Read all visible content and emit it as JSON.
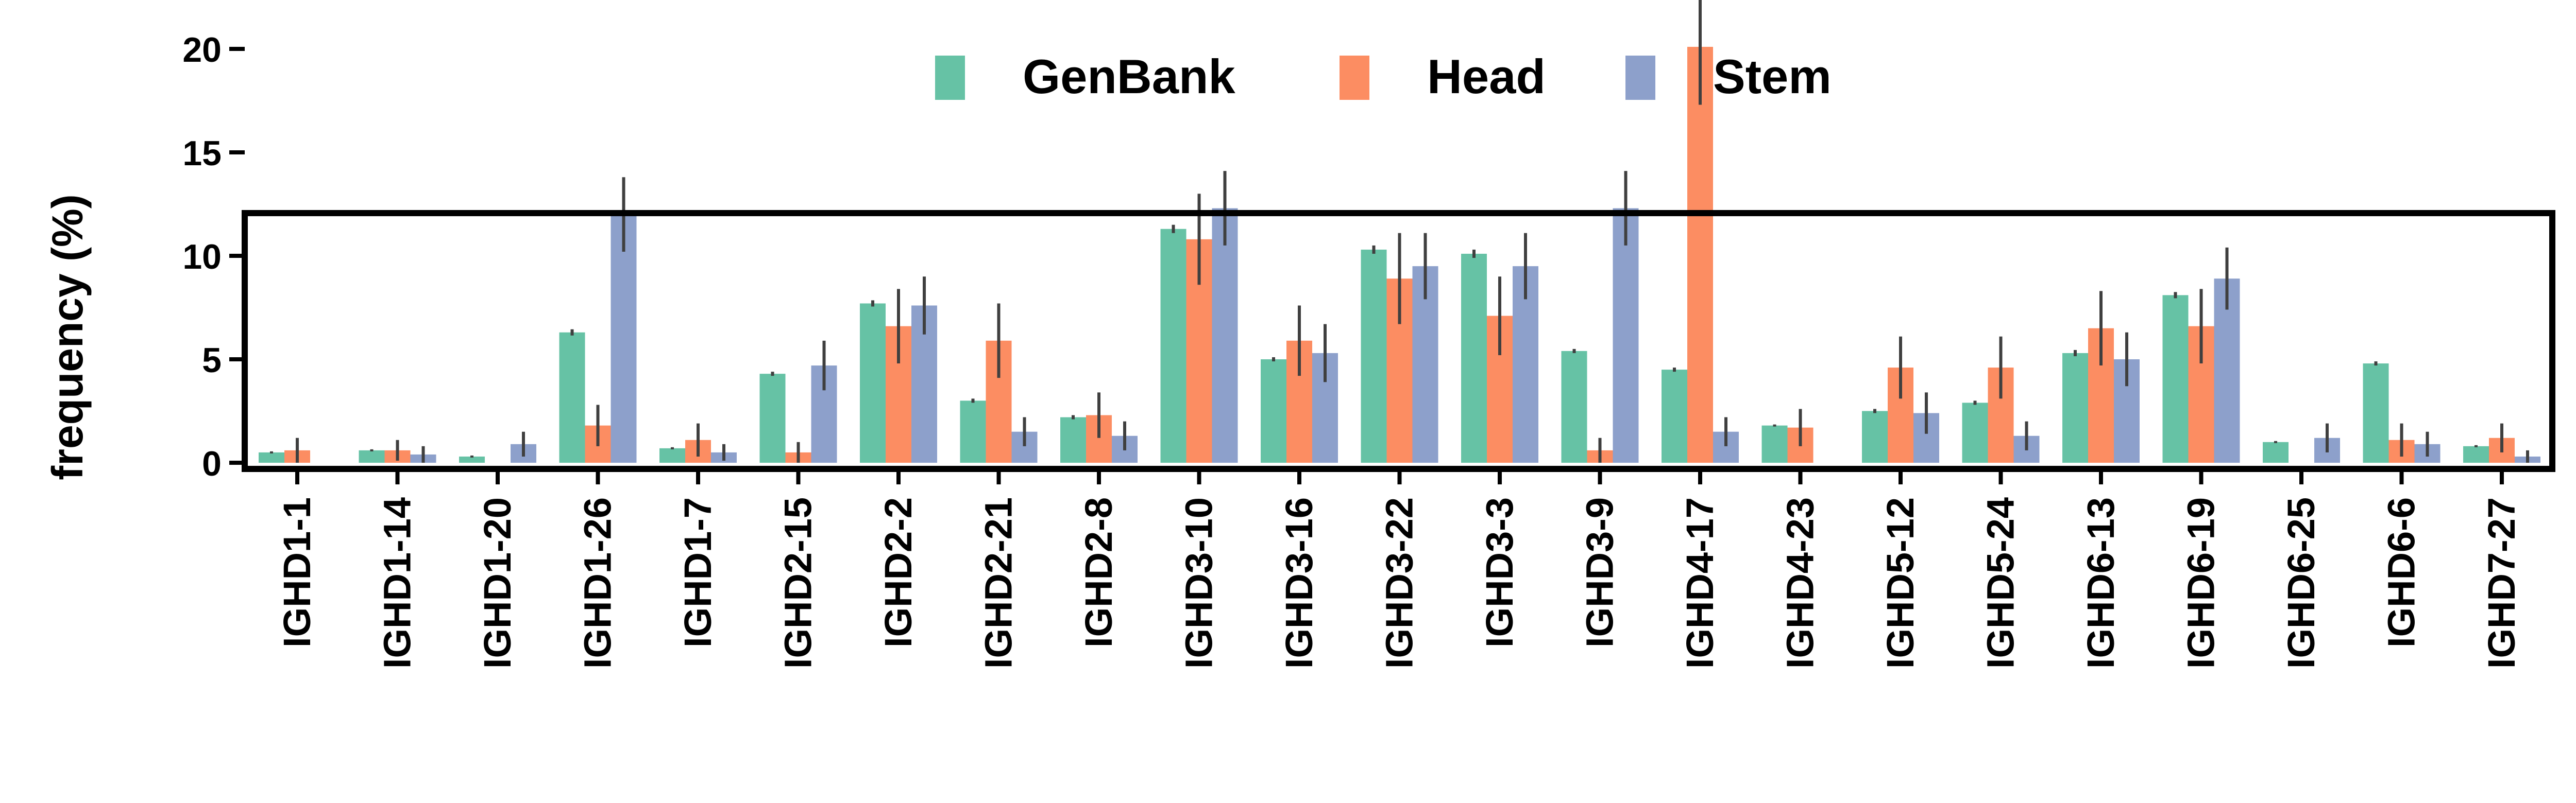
{
  "chart_data": {
    "type": "bar",
    "ylabel": "frequency (%)",
    "xlabel": "",
    "ylim": [
      0,
      23.5
    ],
    "yticks": [
      0,
      5,
      10,
      15,
      20
    ],
    "grid": false,
    "legend_position": "top-center",
    "categories": [
      "IGHD1-1",
      "IGHD1-14",
      "IGHD1-20",
      "IGHD1-26",
      "IGHD1-7",
      "IGHD2-15",
      "IGHD2-2",
      "IGHD2-21",
      "IGHD2-8",
      "IGHD3-10",
      "IGHD3-16",
      "IGHD3-22",
      "IGHD3-3",
      "IGHD3-9",
      "IGHD4-17",
      "IGHD4-23",
      "IGHD5-12",
      "IGHD5-24",
      "IGHD6-13",
      "IGHD6-19",
      "IGHD6-25",
      "IGHD6-6",
      "IGHD7-27"
    ],
    "series": [
      {
        "name": "GenBank",
        "color": "#66c2a5",
        "values": [
          0.5,
          0.6,
          0.3,
          6.3,
          0.7,
          4.3,
          7.7,
          3.0,
          2.2,
          11.3,
          5.0,
          10.3,
          10.1,
          5.4,
          4.5,
          1.8,
          2.5,
          2.9,
          5.3,
          8.1,
          1.0,
          4.8,
          0.8
        ],
        "errors": [
          0.05,
          0.05,
          0.05,
          0.15,
          0.05,
          0.1,
          0.15,
          0.1,
          0.1,
          0.2,
          0.1,
          0.2,
          0.2,
          0.1,
          0.1,
          0.05,
          0.1,
          0.1,
          0.15,
          0.15,
          0.05,
          0.1,
          0.05
        ]
      },
      {
        "name": "Head",
        "color": "#fc8d62",
        "values": [
          0.6,
          0.6,
          0.0,
          1.8,
          1.1,
          0.5,
          6.6,
          5.9,
          2.3,
          10.8,
          5.9,
          8.9,
          7.1,
          0.6,
          20.1,
          1.7,
          4.6,
          4.6,
          6.5,
          6.6,
          0.0,
          1.1,
          1.2
        ],
        "errors": [
          0.6,
          0.5,
          0.0,
          1.0,
          0.8,
          0.5,
          1.8,
          1.8,
          1.1,
          2.2,
          1.7,
          2.2,
          1.9,
          0.6,
          2.8,
          0.9,
          1.5,
          1.5,
          1.8,
          1.8,
          0.0,
          0.8,
          0.7
        ]
      },
      {
        "name": "Stem",
        "color": "#8da0cb",
        "values": [
          0.0,
          0.4,
          0.9,
          12.0,
          0.5,
          4.7,
          7.6,
          1.5,
          1.3,
          12.3,
          5.3,
          9.5,
          9.5,
          12.3,
          1.5,
          0.0,
          2.4,
          1.3,
          5.0,
          8.9,
          1.2,
          0.9,
          0.3
        ],
        "errors": [
          0.0,
          0.4,
          0.6,
          1.8,
          0.4,
          1.2,
          1.4,
          0.7,
          0.7,
          1.8,
          1.4,
          1.6,
          1.6,
          1.8,
          0.7,
          0.0,
          1.0,
          0.7,
          1.3,
          1.5,
          0.7,
          0.6,
          0.3
        ]
      }
    ]
  }
}
